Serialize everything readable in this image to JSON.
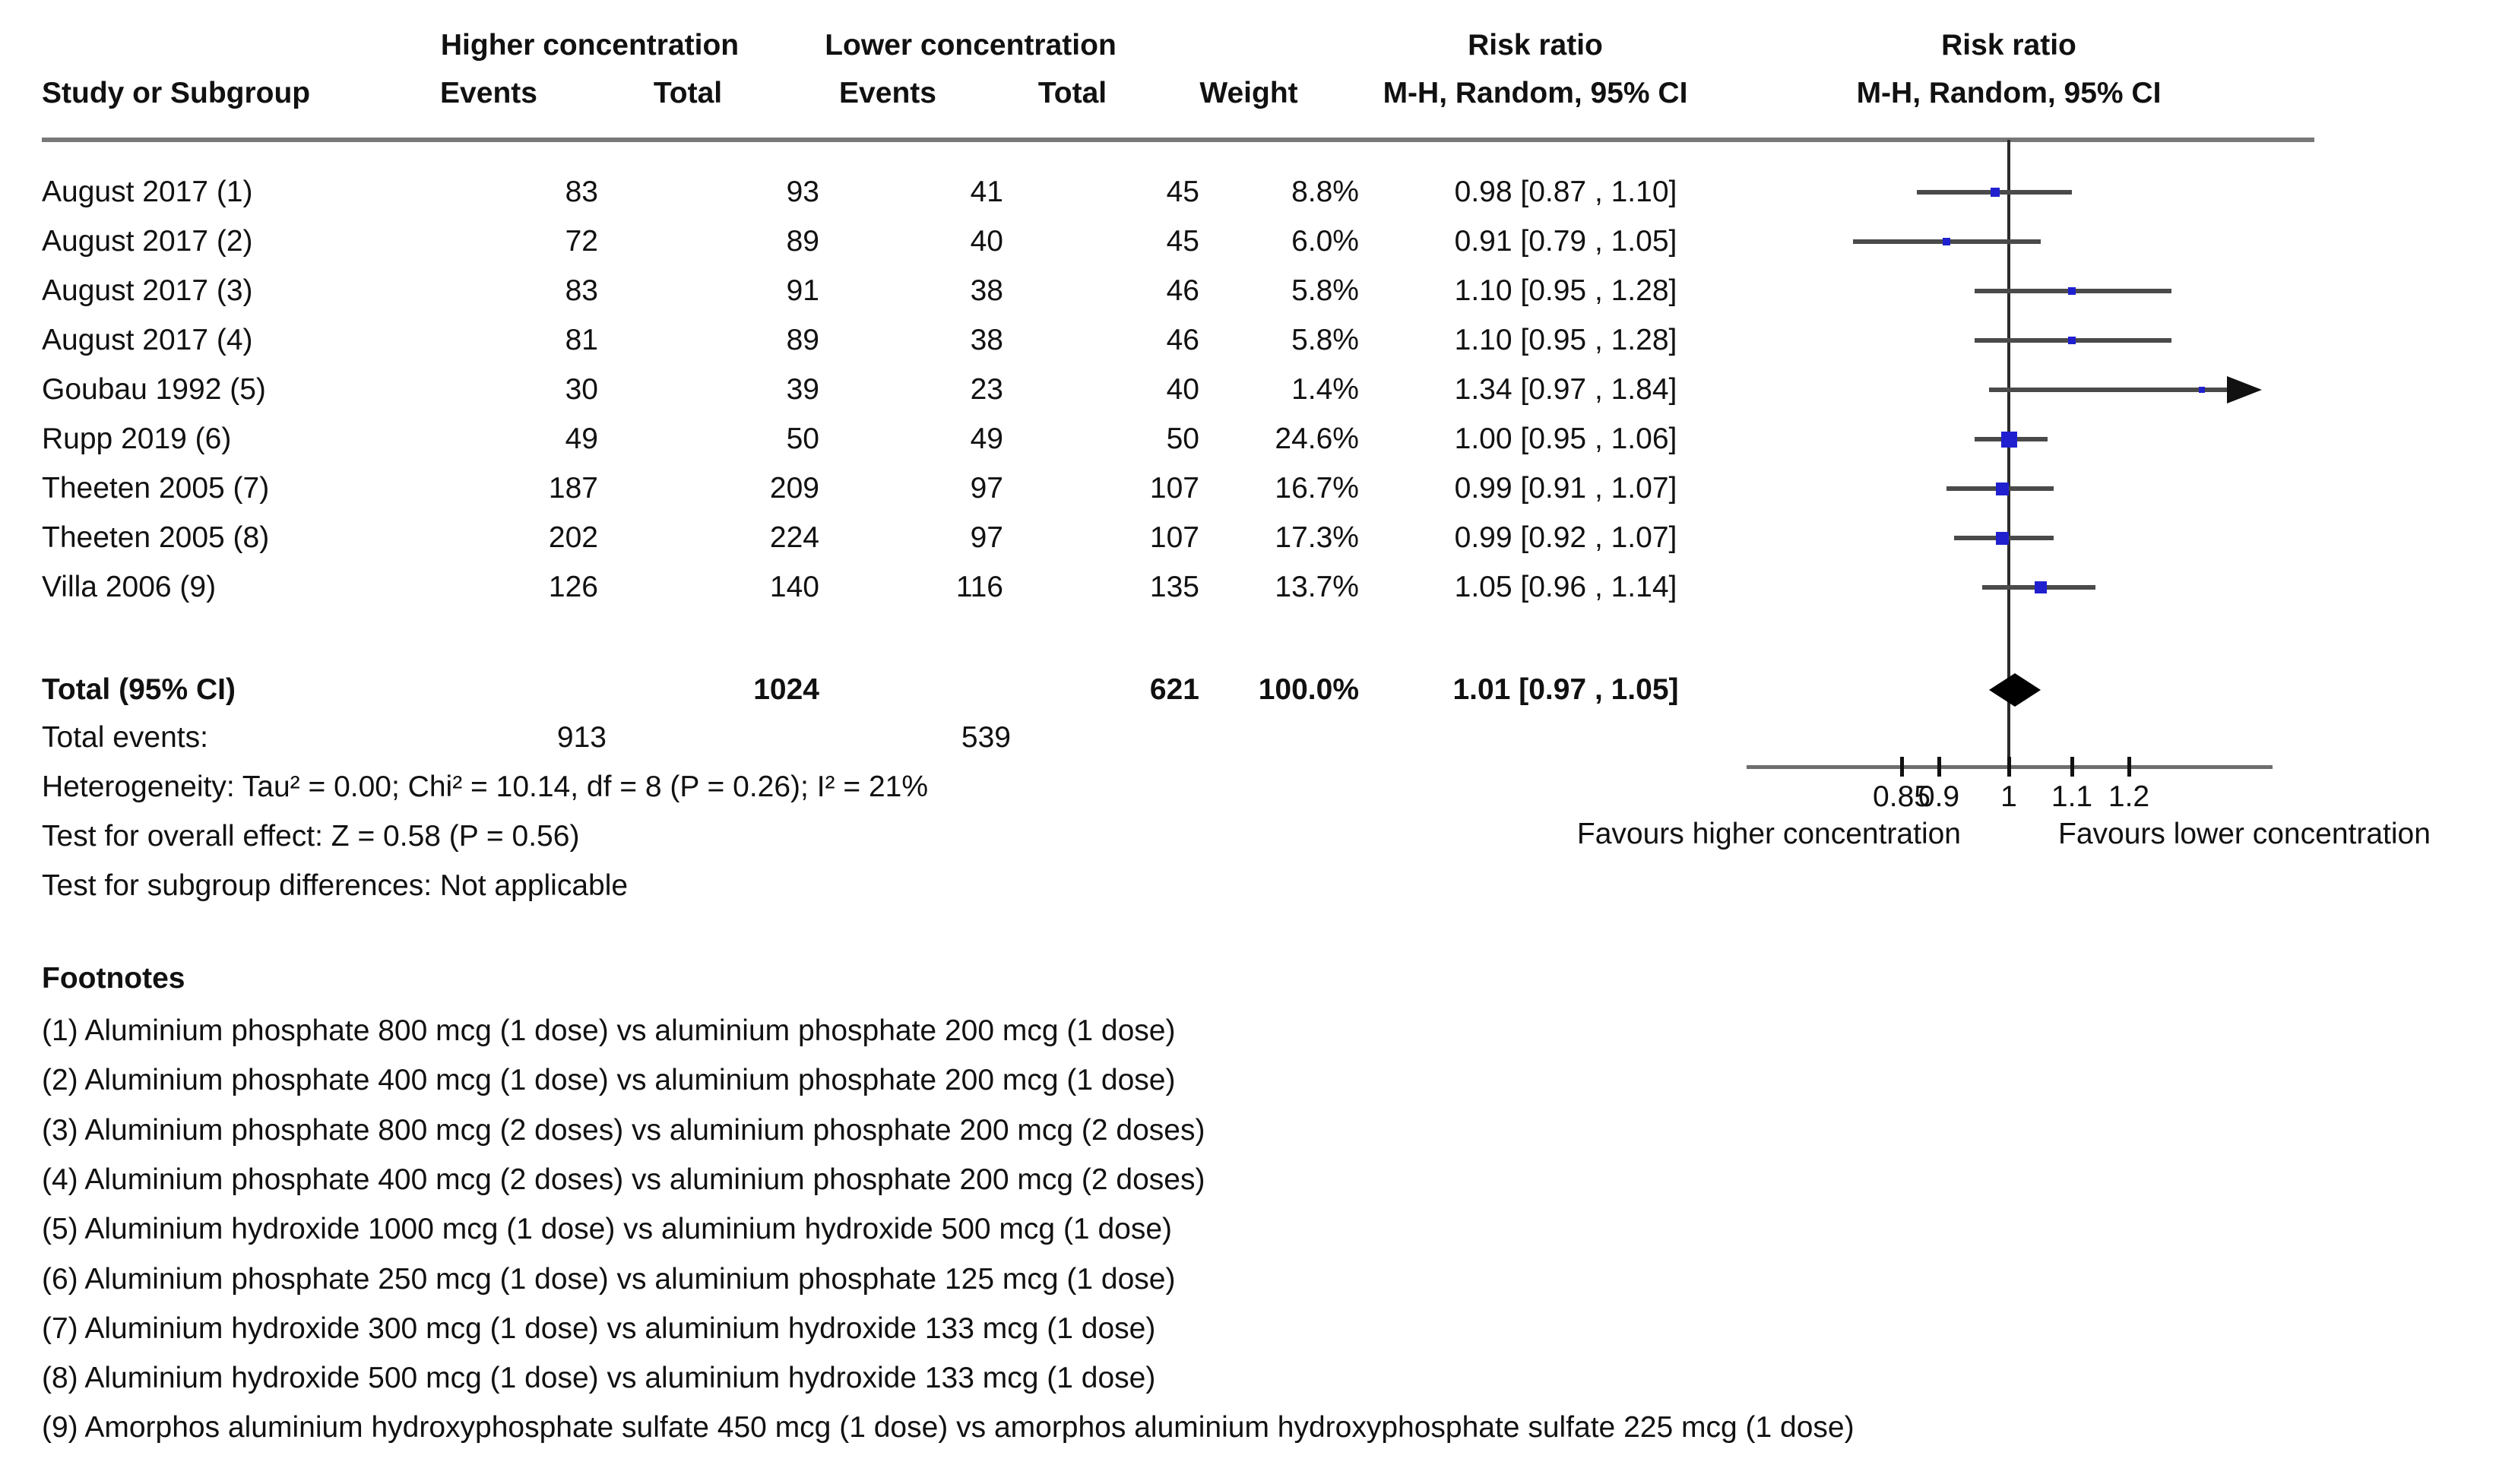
{
  "header": {
    "study_col": "Study or Subgroup",
    "group1": {
      "title": "Higher concentration",
      "events": "Events",
      "total": "Total"
    },
    "group2": {
      "title": "Lower concentration",
      "events": "Events",
      "total": "Total"
    },
    "weight": "Weight",
    "rr_text_col": {
      "title": "Risk ratio",
      "subtitle": "M-H, Random, 95% CI"
    },
    "rr_plot_col": {
      "title": "Risk ratio",
      "subtitle": "M-H, Random, 95% CI"
    }
  },
  "colors": {
    "marker": "#2020cf",
    "diamond": "#000000",
    "ci_line": "#4a4a4a",
    "axis": "#6e6e6e",
    "text": "#111111"
  },
  "chart_data": {
    "type": "forest",
    "effect_label": "Risk ratio",
    "model": "M-H, Random, 95% CI",
    "x_scale": "log",
    "axis": {
      "ticks": [
        0.85,
        0.9,
        1,
        1.1,
        1.2
      ],
      "tick_labels": [
        "0.85",
        "0.9",
        "1",
        "1.1",
        "1.2"
      ],
      "xmin": 0.67,
      "xmax": 1.49,
      "favours_left": "Favours higher concentration",
      "favours_right": "Favours lower concentration"
    },
    "studies": [
      {
        "label": "August 2017 (1)",
        "events1": "83",
        "total1": "93",
        "events2": "41",
        "total2": "45",
        "weight": "8.8%",
        "weight_pct": 8.8,
        "rr": 0.98,
        "lo": 0.87,
        "hi": 1.1,
        "ci_text": "0.98 [0.87 , 1.10]"
      },
      {
        "label": "August 2017 (2)",
        "events1": "72",
        "total1": "89",
        "events2": "40",
        "total2": "45",
        "weight": "6.0%",
        "weight_pct": 6.0,
        "rr": 0.91,
        "lo": 0.79,
        "hi": 1.05,
        "ci_text": "0.91 [0.79 , 1.05]"
      },
      {
        "label": "August 2017 (3)",
        "events1": "83",
        "total1": "91",
        "events2": "38",
        "total2": "46",
        "weight": "5.8%",
        "weight_pct": 5.8,
        "rr": 1.1,
        "lo": 0.95,
        "hi": 1.28,
        "ci_text": "1.10 [0.95 , 1.28]"
      },
      {
        "label": "August 2017 (4)",
        "events1": "81",
        "total1": "89",
        "events2": "38",
        "total2": "46",
        "weight": "5.8%",
        "weight_pct": 5.8,
        "rr": 1.1,
        "lo": 0.95,
        "hi": 1.28,
        "ci_text": "1.10 [0.95 , 1.28]"
      },
      {
        "label": "Goubau 1992 (5)",
        "events1": "30",
        "total1": "39",
        "events2": "23",
        "total2": "40",
        "weight": "1.4%",
        "weight_pct": 1.4,
        "rr": 1.34,
        "lo": 0.97,
        "hi": 1.84,
        "ci_text": "1.34 [0.97 , 1.84]"
      },
      {
        "label": "Rupp 2019 (6)",
        "events1": "49",
        "total1": "50",
        "events2": "49",
        "total2": "50",
        "weight": "24.6%",
        "weight_pct": 24.6,
        "rr": 1.0,
        "lo": 0.95,
        "hi": 1.06,
        "ci_text": "1.00 [0.95 , 1.06]"
      },
      {
        "label": "Theeten 2005 (7)",
        "events1": "187",
        "total1": "209",
        "events2": "97",
        "total2": "107",
        "weight": "16.7%",
        "weight_pct": 16.7,
        "rr": 0.99,
        "lo": 0.91,
        "hi": 1.07,
        "ci_text": "0.99 [0.91 , 1.07]"
      },
      {
        "label": "Theeten 2005 (8)",
        "events1": "202",
        "total1": "224",
        "events2": "97",
        "total2": "107",
        "weight": "17.3%",
        "weight_pct": 17.3,
        "rr": 0.99,
        "lo": 0.92,
        "hi": 1.07,
        "ci_text": "0.99 [0.92 , 1.07]"
      },
      {
        "label": "Villa 2006 (9)",
        "events1": "126",
        "total1": "140",
        "events2": "116",
        "total2": "135",
        "weight": "13.7%",
        "weight_pct": 13.7,
        "rr": 1.05,
        "lo": 0.96,
        "hi": 1.14,
        "ci_text": "1.05 [0.96 , 1.14]"
      }
    ],
    "total": {
      "label": "Total (95% CI)",
      "total1": "1024",
      "total2": "621",
      "weight": "100.0%",
      "rr": 1.01,
      "lo": 0.97,
      "hi": 1.05,
      "ci_text": "1.01 [0.97 , 1.05]"
    },
    "total_events": {
      "label": "Total events:",
      "events1": "913",
      "events2": "539"
    },
    "stats": {
      "heterogeneity": "Heterogeneity: Tau² = 0.00; Chi² = 10.14, df = 8 (P = 0.26); I² = 21%",
      "overall": "Test for overall effect: Z = 0.58 (P = 0.56)",
      "subgroup": "Test for subgroup differences: Not applicable"
    },
    "footnotes_title": "Footnotes",
    "footnotes": [
      "(1) Aluminium phosphate 800 mcg (1 dose) vs aluminium phosphate 200 mcg (1 dose)",
      "(2) Aluminium phosphate 400 mcg (1 dose) vs aluminium phosphate 200 mcg (1 dose)",
      "(3) Aluminium phosphate 800 mcg (2 doses) vs aluminium phosphate 200 mcg (2 doses)",
      "(4) Aluminium phosphate 400 mcg (2 doses) vs aluminium phosphate 200 mcg (2 doses)",
      "(5) Aluminium hydroxide 1000 mcg (1 dose) vs aluminium hydroxide 500 mcg (1 dose)",
      "(6) Aluminium phosphate 250 mcg (1 dose) vs aluminium phosphate 125 mcg (1 dose)",
      "(7) Aluminium hydroxide 300 mcg (1 dose) vs aluminium hydroxide 133 mcg (1 dose)",
      "(8) Aluminium hydroxide 500 mcg (1 dose) vs aluminium hydroxide 133 mcg (1 dose)",
      "(9) Amorphos aluminium hydroxyphosphate sulfate 450 mcg (1 dose) vs amorphos aluminium hydroxyphosphate sulfate 225 mcg (1 dose)"
    ]
  }
}
